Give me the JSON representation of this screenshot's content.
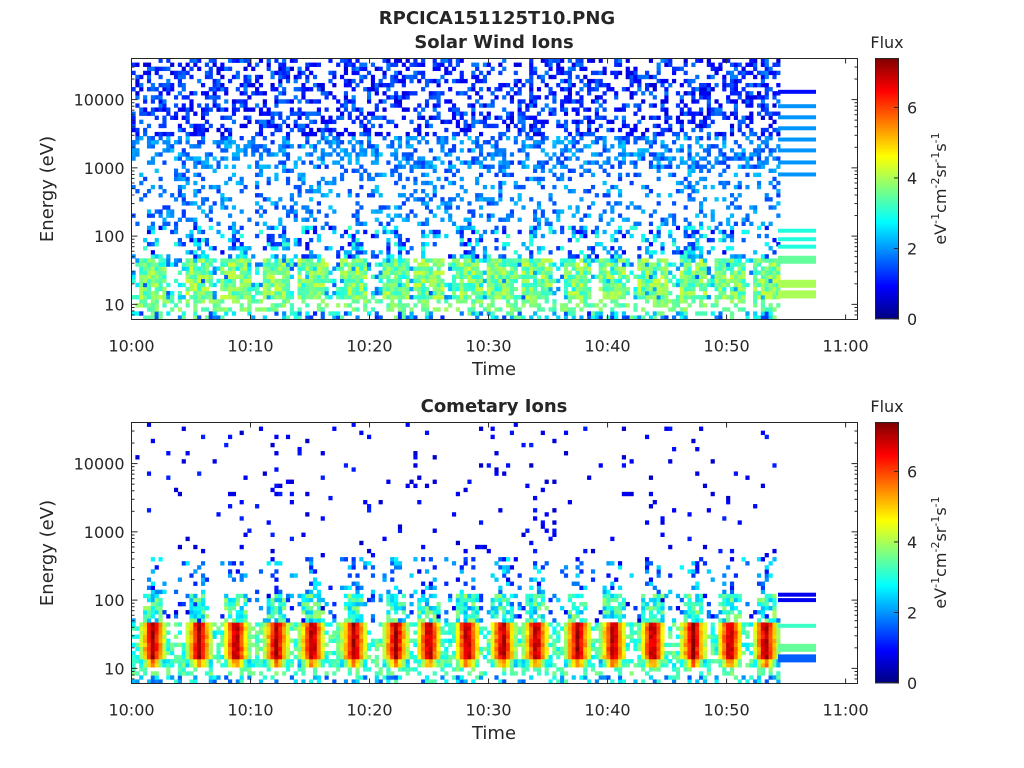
{
  "figure_title": "RPCICA151125T10.PNG",
  "colorbar": {
    "title": "Flux",
    "label_base": "eV",
    "label_parts": [
      {
        "t": "eV",
        "sup": false
      },
      {
        "t": "-1",
        "sup": true
      },
      {
        "t": "cm",
        "sup": false
      },
      {
        "t": "-2",
        "sup": true
      },
      {
        "t": "sr",
        "sup": false
      },
      {
        "t": "-1",
        "sup": true
      },
      {
        "t": "s",
        "sup": false
      },
      {
        "t": "-1",
        "sup": true
      }
    ],
    "ticks": [
      "0",
      "2",
      "4",
      "6"
    ],
    "tick_values": [
      0,
      2,
      4,
      6
    ],
    "range": [
      0,
      7.4
    ],
    "colormap": "jet"
  },
  "chart_data": [
    {
      "type": "heatmap",
      "title": "Solar Wind Ions",
      "xlabel": "Time",
      "ylabel": "Energy (eV)",
      "x_ticks": [
        "10:00",
        "10:10",
        "10:20",
        "10:30",
        "10:40",
        "10:50",
        "11:00"
      ],
      "x_tick_minutes": [
        0,
        10,
        20,
        30,
        40,
        50,
        60
      ],
      "xlim_minutes": [
        0,
        61
      ],
      "data_end_minutes": 54.5,
      "y_scale": "log",
      "y_ticks": [
        "10",
        "100",
        "1000",
        "10000"
      ],
      "y_tick_values": [
        10,
        100,
        1000,
        10000
      ],
      "ylim": [
        6,
        40000
      ],
      "legend_values": [
        1,
        2,
        2,
        2,
        2,
        2,
        2,
        2,
        3,
        3,
        3,
        3.5,
        4,
        4
      ]
    },
    {
      "type": "heatmap",
      "title": "Cometary Ions",
      "xlabel": "Time",
      "ylabel": "Energy (eV)",
      "x_ticks": [
        "10:00",
        "10:10",
        "10:20",
        "10:30",
        "10:40",
        "10:50",
        "11:00"
      ],
      "x_tick_minutes": [
        0,
        10,
        20,
        30,
        40,
        50,
        60
      ],
      "xlim_minutes": [
        0,
        61
      ],
      "data_end_minutes": 54.5,
      "y_scale": "log",
      "y_ticks": [
        "10",
        "100",
        "1000",
        "10000"
      ],
      "y_tick_values": [
        10,
        100,
        1000,
        10000
      ],
      "ylim": [
        6,
        40000
      ],
      "pulse_center_minutes": [
        1.8,
        5.7,
        8.8,
        12.2,
        15.2,
        18.7,
        22.2,
        25.0,
        28.2,
        31.2,
        34.0,
        37.5,
        40.5,
        43.8,
        47.2,
        50.3,
        53.3
      ]
    }
  ]
}
